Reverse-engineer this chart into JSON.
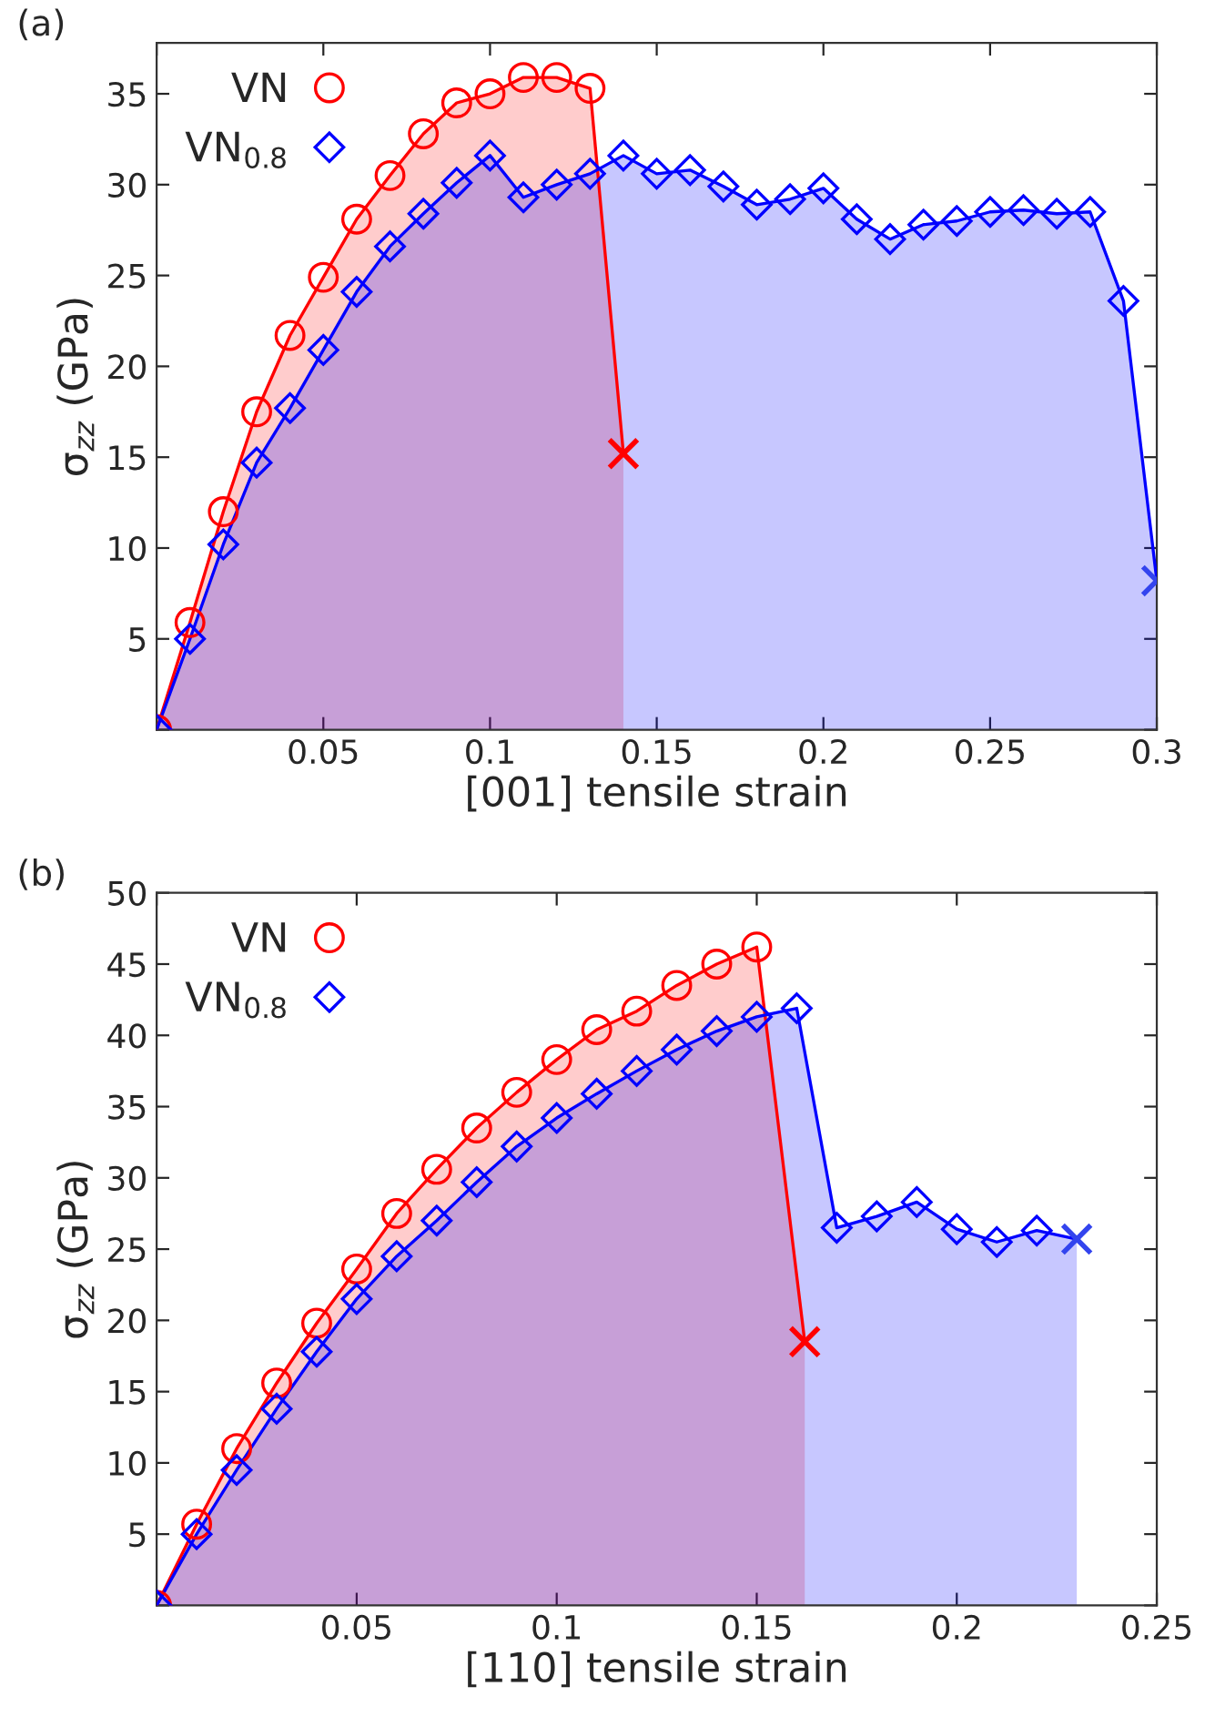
{
  "chart_data": [
    {
      "type": "area",
      "title": "(a)",
      "xlabel": "[001] tensile strain",
      "ylabel": "σ$_{zz}$ (GPa)",
      "xlim": [
        0,
        0.3
      ],
      "xticks": [
        {
          "value": 0,
          "label": null
        },
        0.05,
        0.1,
        0.15,
        0.2,
        0.25,
        0.3
      ],
      "ylim": [
        0,
        37.8
      ],
      "yticks": [
        {
          "value": 0,
          "label": null
        },
        5,
        10,
        15,
        20,
        25,
        30,
        35
      ],
      "legend": "top left",
      "grid": false,
      "series": [
        {
          "color": "#ff0000",
          "marker": "none",
          "x": [
            0,
            0.01,
            0.02,
            0.03,
            0.04,
            0.05,
            0.06,
            0.07,
            0.08,
            0.09,
            0.1,
            0.11,
            0.12,
            0.13,
            0.14
          ],
          "values": [
            0,
            5.9,
            12.0,
            17.5,
            21.7,
            24.9,
            28.1,
            30.5,
            32.8,
            34.5,
            35.0,
            35.9,
            35.9,
            35.3,
            15.2
          ]
        },
        {
          "color": "#0000ff",
          "marker": "none",
          "x": [
            0,
            0.01,
            0.02,
            0.03,
            0.04,
            0.05,
            0.06,
            0.07,
            0.08,
            0.09,
            0.1,
            0.11,
            0.12,
            0.13,
            0.14,
            0.15,
            0.16,
            0.17,
            0.18,
            0.19,
            0.2,
            0.21,
            0.22,
            0.23,
            0.24,
            0.25,
            0.26,
            0.27,
            0.28,
            0.29,
            0.3
          ],
          "values": [
            0,
            5.0,
            10.2,
            14.7,
            17.7,
            20.9,
            24.1,
            26.6,
            28.4,
            30.1,
            31.6,
            29.3,
            30.0,
            30.6,
            31.6,
            30.6,
            30.8,
            29.9,
            28.9,
            29.2,
            29.8,
            28.1,
            27.0,
            27.8,
            28.0,
            28.5,
            28.6,
            28.4,
            28.5,
            23.6,
            8.2
          ]
        },
        {
          "type": "scatter",
          "name": "VN",
          "color": "#ff0000",
          "marker": "circle",
          "x": [
            0,
            0.01,
            0.02,
            0.03,
            0.04,
            0.05,
            0.06,
            0.07,
            0.08,
            0.09,
            0.1,
            0.11,
            0.12,
            0.13
          ],
          "values": [
            0,
            5.9,
            12.0,
            17.5,
            21.7,
            24.9,
            28.1,
            30.5,
            32.8,
            34.5,
            35.0,
            35.9,
            35.9,
            35.3
          ]
        },
        {
          "type": "scatter",
          "name": "VN$_{0.8}$",
          "color": "#0000ff",
          "marker": "diamond",
          "x": [
            0,
            0.01,
            0.02,
            0.03,
            0.04,
            0.05,
            0.06,
            0.07,
            0.08,
            0.09,
            0.1,
            0.11,
            0.12,
            0.13,
            0.14,
            0.15,
            0.16,
            0.17,
            0.18,
            0.19,
            0.2,
            0.21,
            0.22,
            0.23,
            0.24,
            0.25,
            0.26,
            0.27,
            0.28,
            0.29
          ],
          "values": [
            0,
            5.0,
            10.2,
            14.7,
            17.7,
            20.9,
            24.1,
            26.6,
            28.4,
            30.1,
            31.6,
            29.3,
            30.0,
            30.6,
            31.6,
            30.6,
            30.8,
            29.9,
            28.9,
            29.2,
            29.8,
            28.1,
            27.0,
            27.8,
            28.0,
            28.5,
            28.6,
            28.4,
            28.5,
            23.6
          ]
        },
        {
          "type": "scatter",
          "color": "#ff0000",
          "marker": "cross",
          "x": [
            0.14
          ],
          "values": [
            15.2
          ]
        },
        {
          "type": "scatter",
          "color": "#3344ee",
          "marker": "cross",
          "x": [
            0.3
          ],
          "values": [
            8.2
          ]
        }
      ]
    },
    {
      "type": "area",
      "title": "(b)",
      "xlabel": "[110] tensile strain",
      "ylabel": "σ$_{zz}$ (GPa)",
      "xlim": [
        0,
        0.25
      ],
      "xticks": [
        {
          "value": 0,
          "label": null
        },
        0.05,
        0.1,
        0.15,
        0.2,
        0.25
      ],
      "ylim": [
        0,
        50
      ],
      "yticks": [
        {
          "value": 0,
          "label": null
        },
        5,
        10,
        15,
        20,
        25,
        30,
        35,
        40,
        45,
        50
      ],
      "legend": "top left",
      "grid": false,
      "series": [
        {
          "color": "#ff0000",
          "marker": "none",
          "x": [
            0,
            0.01,
            0.02,
            0.03,
            0.04,
            0.05,
            0.06,
            0.07,
            0.08,
            0.09,
            0.1,
            0.11,
            0.12,
            0.13,
            0.14,
            0.15,
            0.162
          ],
          "values": [
            0,
            5.7,
            11.0,
            15.6,
            19.8,
            23.6,
            27.5,
            30.6,
            33.5,
            36.0,
            38.3,
            40.4,
            41.7,
            43.5,
            45.0,
            46.2,
            18.5
          ]
        },
        {
          "color": "#0000ff",
          "marker": "none",
          "x": [
            0,
            0.01,
            0.02,
            0.03,
            0.04,
            0.05,
            0.06,
            0.07,
            0.08,
            0.09,
            0.1,
            0.11,
            0.12,
            0.13,
            0.14,
            0.15,
            0.16,
            0.17,
            0.18,
            0.19,
            0.2,
            0.21,
            0.22,
            0.23
          ],
          "values": [
            0,
            5.0,
            9.5,
            13.8,
            17.8,
            21.5,
            24.5,
            27.0,
            29.7,
            32.2,
            34.2,
            35.9,
            37.5,
            39.0,
            40.3,
            41.3,
            41.9,
            26.5,
            27.3,
            28.3,
            26.4,
            25.5,
            26.3,
            25.7
          ]
        },
        {
          "type": "scatter",
          "name": "VN",
          "color": "#ff0000",
          "marker": "circle",
          "x": [
            0,
            0.01,
            0.02,
            0.03,
            0.04,
            0.05,
            0.06,
            0.07,
            0.08,
            0.09,
            0.1,
            0.11,
            0.12,
            0.13,
            0.14,
            0.15
          ],
          "values": [
            0,
            5.7,
            11.0,
            15.6,
            19.8,
            23.6,
            27.5,
            30.6,
            33.5,
            36.0,
            38.3,
            40.4,
            41.7,
            43.5,
            45.0,
            46.2
          ]
        },
        {
          "type": "scatter",
          "name": "VN$_{0.8}$",
          "color": "#0000ff",
          "marker": "diamond",
          "x": [
            0,
            0.01,
            0.02,
            0.03,
            0.04,
            0.05,
            0.06,
            0.07,
            0.08,
            0.09,
            0.1,
            0.11,
            0.12,
            0.13,
            0.14,
            0.15,
            0.16,
            0.17,
            0.18,
            0.19,
            0.2,
            0.21,
            0.22
          ],
          "values": [
            0,
            5.0,
            9.5,
            13.8,
            17.8,
            21.5,
            24.5,
            27.0,
            29.7,
            32.2,
            34.2,
            35.9,
            37.5,
            39.0,
            40.3,
            41.3,
            41.9,
            26.5,
            27.3,
            28.3,
            26.4,
            25.5,
            26.3
          ]
        },
        {
          "type": "scatter",
          "color": "#ff0000",
          "marker": "cross",
          "x": [
            0.162
          ],
          "values": [
            18.5
          ]
        },
        {
          "type": "scatter",
          "color": "#3344ee",
          "marker": "cross",
          "x": [
            0.23
          ],
          "values": [
            25.7
          ]
        }
      ]
    }
  ]
}
